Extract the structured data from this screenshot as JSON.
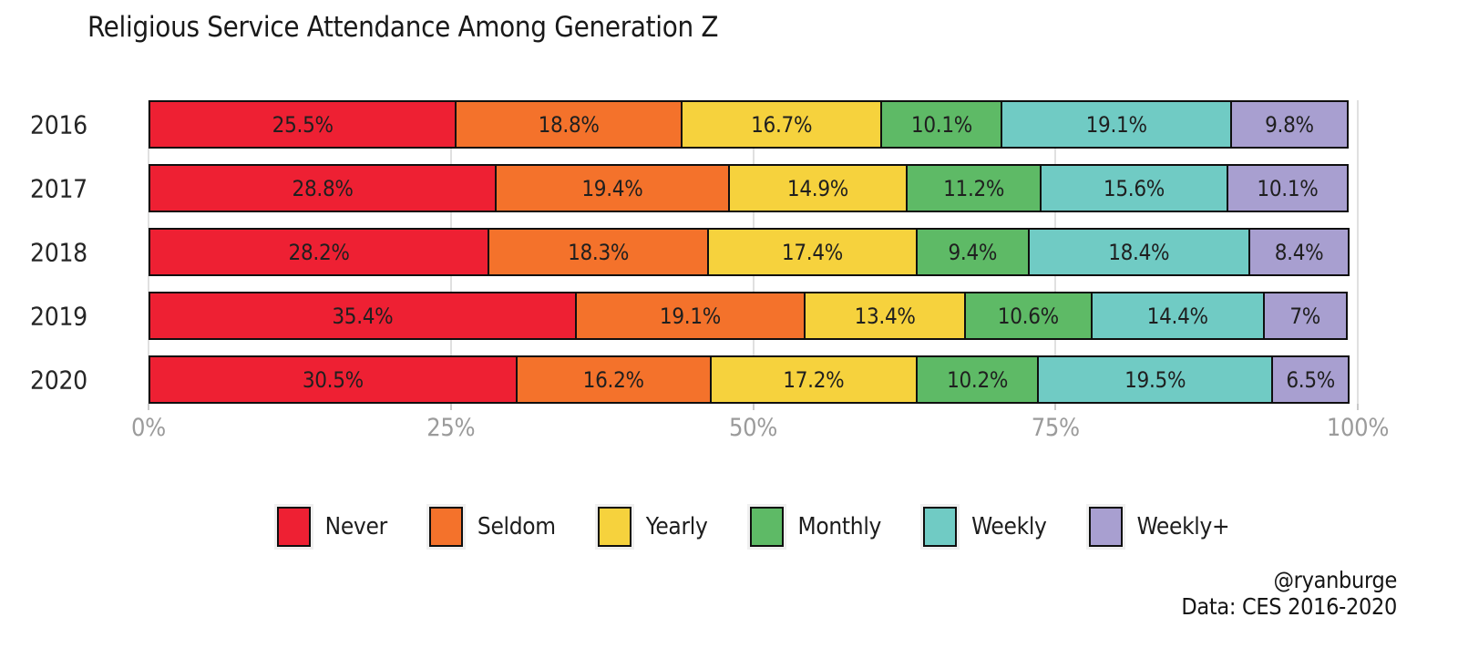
{
  "title": "Religious Service Attendance Among Generation Z",
  "attribution": {
    "handle": "@ryanburge",
    "source": "Data: CES 2016-2020"
  },
  "chart_data": {
    "type": "bar",
    "orientation": "horizontal",
    "stacked": true,
    "unit": "%",
    "title": "Religious Service Attendance Among Generation Z",
    "categories": [
      "2016",
      "2017",
      "2018",
      "2019",
      "2020"
    ],
    "series": [
      {
        "name": "Never",
        "color": "#EE2033",
        "values": [
          25.5,
          28.8,
          28.2,
          35.4,
          30.5
        ]
      },
      {
        "name": "Seldom",
        "color": "#F4722B",
        "values": [
          18.8,
          19.4,
          18.3,
          19.1,
          16.2
        ]
      },
      {
        "name": "Yearly",
        "color": "#F6D23D",
        "values": [
          16.7,
          14.9,
          17.4,
          13.4,
          17.2
        ]
      },
      {
        "name": "Monthly",
        "color": "#5EBA66",
        "values": [
          10.1,
          11.2,
          9.4,
          10.6,
          10.2
        ]
      },
      {
        "name": "Weekly",
        "color": "#70CBC4",
        "values": [
          19.1,
          15.6,
          18.4,
          14.4,
          19.5
        ]
      },
      {
        "name": "Weekly+",
        "color": "#A89FD0",
        "values": [
          9.8,
          10.1,
          8.4,
          7,
          6.5
        ]
      }
    ],
    "x_ticks": {
      "values": [
        0,
        25,
        50,
        75,
        100
      ],
      "labels": [
        "0%",
        "25%",
        "50%",
        "75%",
        "100%"
      ]
    },
    "xlim": [
      0,
      100
    ],
    "legend_position": "bottom",
    "grid": "vertical-major",
    "bar_border_color": "#0F0F0F",
    "value_label_color": "#1F1F1F",
    "axis_text_color": "#9B9B9B",
    "grid_color": "#E0E0E0"
  }
}
